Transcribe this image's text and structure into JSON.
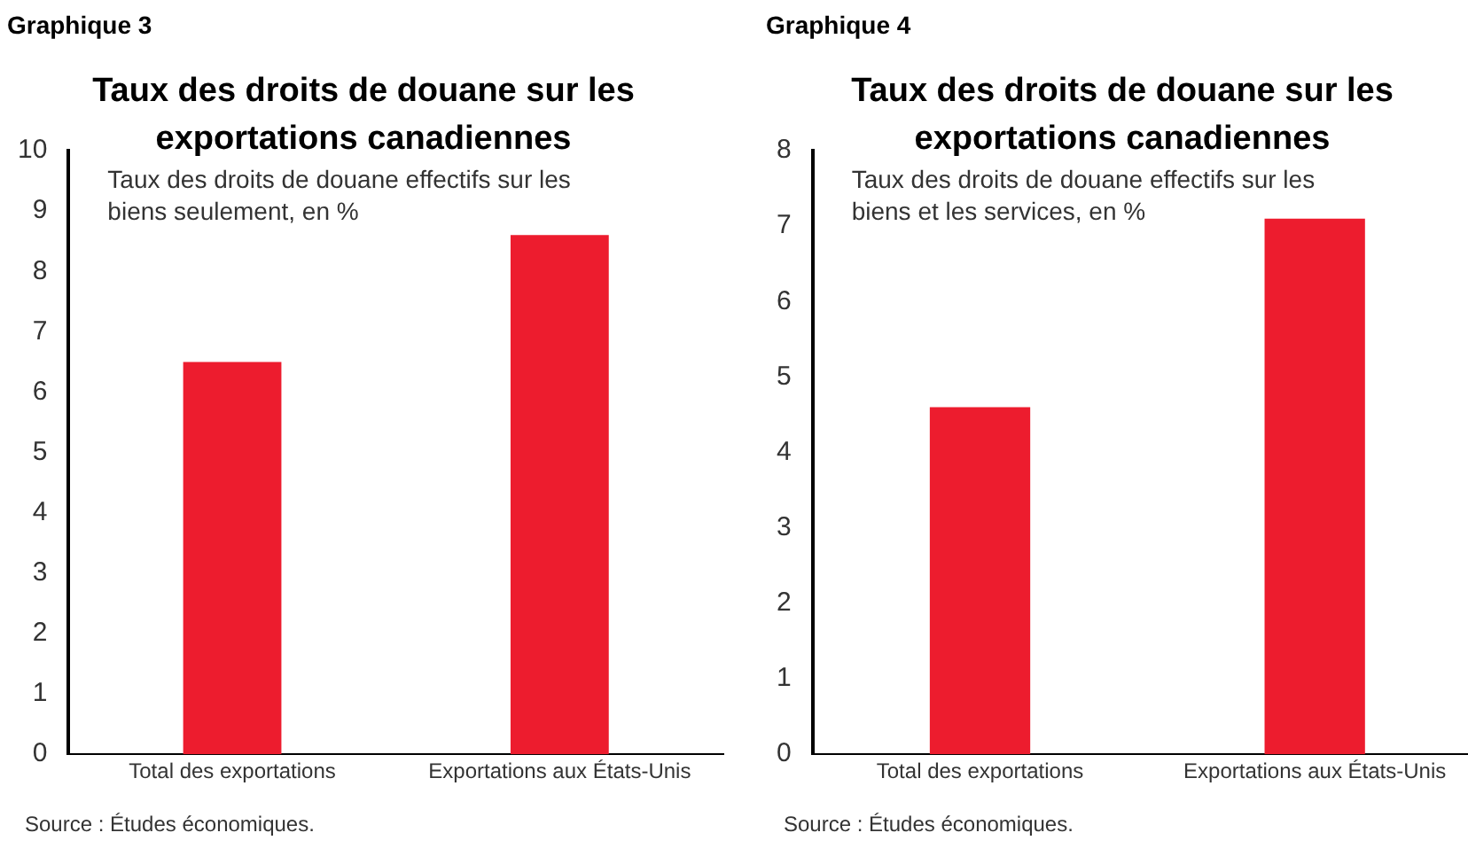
{
  "chart_data": [
    {
      "type": "bar",
      "title": "Taux des droits de douane sur les exportations canadiennes",
      "subtitle": "Taux des droits de douane effectifs sur les biens seulement, en %",
      "categories": [
        "Total des exportations",
        "Exportations aux États-Unis"
      ],
      "values": [
        6.5,
        8.6
      ],
      "color": "#ed1c2e",
      "ylim": [
        0,
        10
      ],
      "yticks": [
        0,
        1,
        2,
        3,
        4,
        5,
        6,
        7,
        8,
        9,
        10
      ],
      "grid": false,
      "legend": false,
      "annotations": [
        "Graphique 3",
        "Source : Études économiques."
      ]
    },
    {
      "type": "bar",
      "title": "Taux des droits de douane sur les exportations canadiennes",
      "subtitle": "Taux des droits de douane effectifs sur les biens et les services, en %",
      "categories": [
        "Total des exportations",
        "Exportations aux États-Unis"
      ],
      "values": [
        4.6,
        7.1
      ],
      "color": "#ed1c2e",
      "ylim": [
        0,
        8
      ],
      "yticks": [
        0,
        1,
        2,
        3,
        4,
        5,
        6,
        7,
        8
      ],
      "grid": false,
      "legend": false,
      "annotations": [
        "Graphique 4",
        "Source : Études économiques."
      ]
    }
  ]
}
